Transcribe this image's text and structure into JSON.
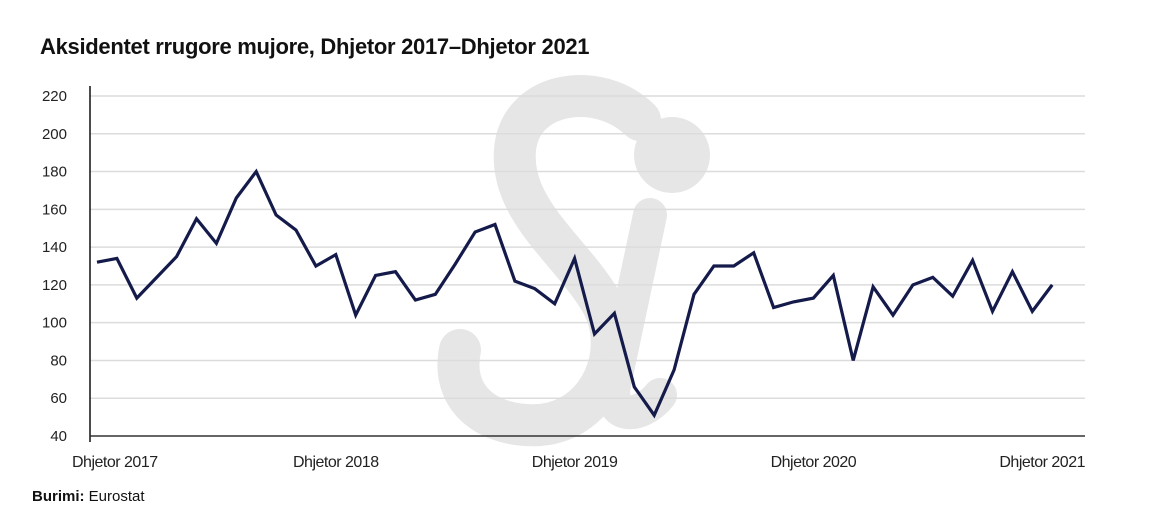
{
  "chart_data": {
    "type": "line",
    "title": "Aksidentet rrugore mujore, Dhjetor 2017–Dhjetor 2021",
    "xlabel": "",
    "ylabel": "",
    "ylim": [
      40,
      220
    ],
    "yticks": [
      40,
      60,
      80,
      100,
      120,
      140,
      160,
      180,
      200,
      220
    ],
    "xtick_labels": [
      {
        "index": 0,
        "label": "Dhjetor 2017"
      },
      {
        "index": 12,
        "label": "Dhjetor 2018"
      },
      {
        "index": 24,
        "label": "Dhjetor 2019"
      },
      {
        "index": 36,
        "label": "Dhjetor 2020"
      },
      {
        "index": 48,
        "label": "Dhjetor 2021"
      }
    ],
    "grid": true,
    "series": [
      {
        "name": "Aksidentet rrugore",
        "color": "#141a4a",
        "values": [
          132,
          134,
          113,
          124,
          135,
          155,
          142,
          166,
          180,
          157,
          149,
          130,
          136,
          104,
          125,
          127,
          112,
          115,
          131,
          148,
          152,
          122,
          118,
          110,
          134,
          94,
          105,
          66,
          51,
          75,
          115,
          130,
          130,
          137,
          108,
          111,
          113,
          125,
          80,
          119,
          104,
          120,
          124,
          114,
          133,
          106,
          127,
          106,
          120
        ]
      }
    ]
  },
  "source": {
    "label": "Burimi:",
    "value": "Eurostat"
  },
  "watermark": "Si"
}
